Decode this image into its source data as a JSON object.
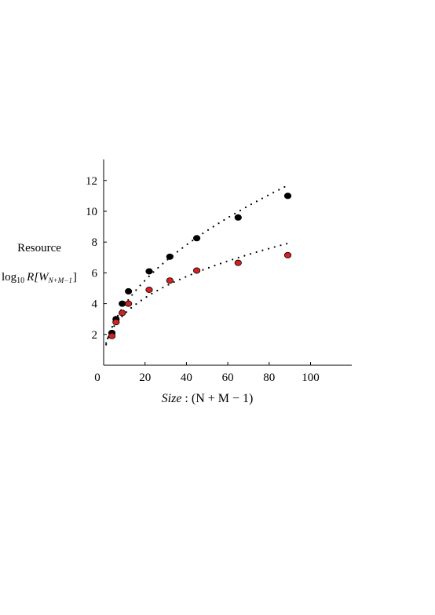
{
  "chart_data": {
    "type": "scatter",
    "title": "",
    "xlabel_italic": "Size",
    "xlabel_rest": " : (N + M − 1)",
    "ylabel_line1": "Resource",
    "ylabel_line2_prefix": "log",
    "ylabel_line2_sub": "10",
    "ylabel_line2_italic": "R[W",
    "ylabel_line2_sub2": "N+M−1",
    "ylabel_line2_end": "]",
    "xlim": [
      0,
      120
    ],
    "ylim": [
      0,
      13
    ],
    "x_ticks": [
      0,
      20,
      40,
      60,
      80,
      100
    ],
    "y_ticks": [
      2,
      4,
      6,
      8,
      10,
      12
    ],
    "grid": false,
    "legend": "none",
    "series": [
      {
        "marker_color": "#000000",
        "fit_line": "dotted",
        "points": [
          {
            "x": 4,
            "y": 2.1
          },
          {
            "x": 6,
            "y": 3.0
          },
          {
            "x": 9,
            "y": 4.0
          },
          {
            "x": 12,
            "y": 4.8
          },
          {
            "x": 22,
            "y": 6.1
          },
          {
            "x": 32,
            "y": 7.05
          },
          {
            "x": 45,
            "y": 8.25
          },
          {
            "x": 65,
            "y": 9.6
          },
          {
            "x": 89,
            "y": 11.0
          }
        ]
      },
      {
        "marker_color": "#d42020",
        "fit_line": "dotted",
        "points": [
          {
            "x": 4,
            "y": 1.9
          },
          {
            "x": 6,
            "y": 2.8
          },
          {
            "x": 9,
            "y": 3.4
          },
          {
            "x": 12,
            "y": 4.0
          },
          {
            "x": 22,
            "y": 4.9
          },
          {
            "x": 32,
            "y": 5.5
          },
          {
            "x": 45,
            "y": 6.15
          },
          {
            "x": 65,
            "y": 6.65
          },
          {
            "x": 89,
            "y": 7.15
          }
        ]
      }
    ]
  }
}
